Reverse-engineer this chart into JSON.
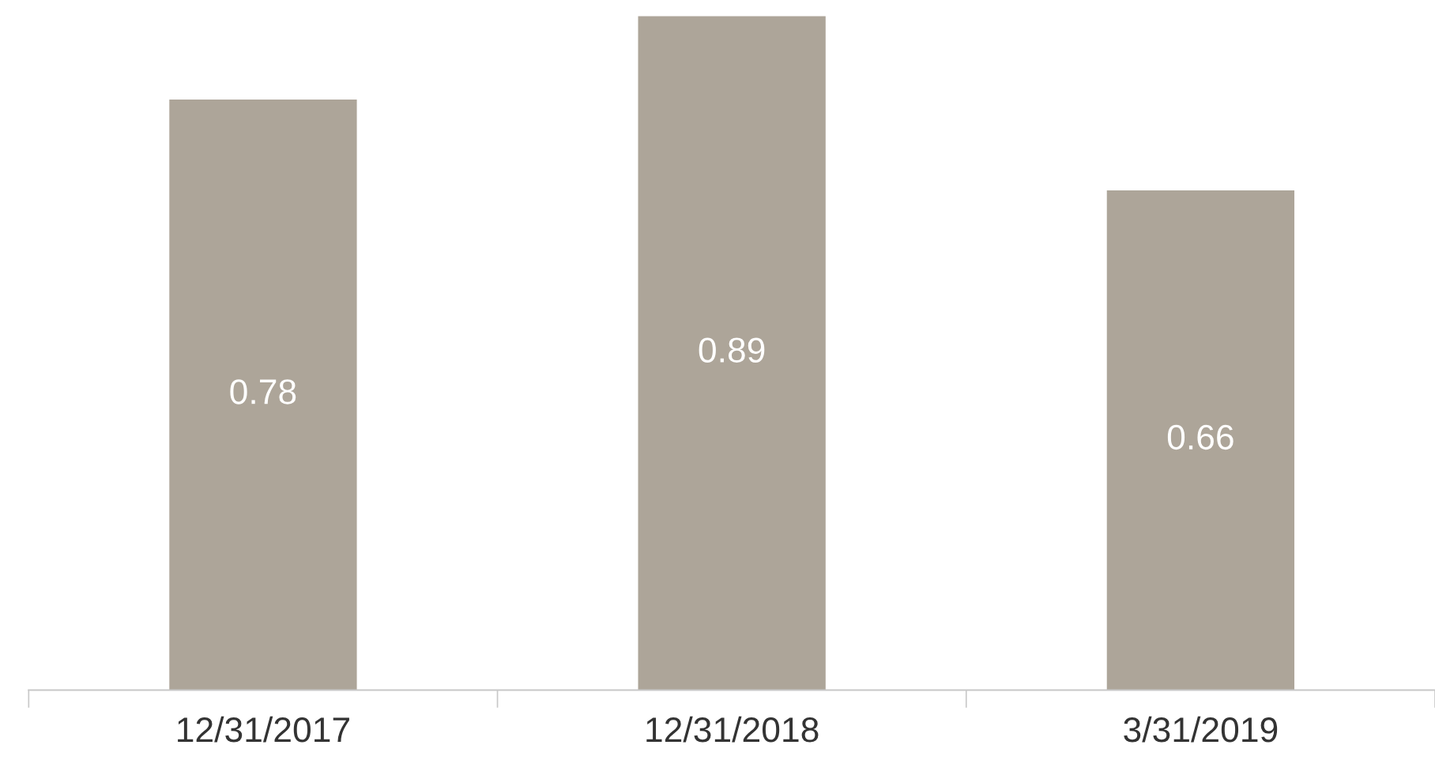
{
  "chart_data": {
    "type": "bar",
    "categories": [
      "12/31/2017",
      "12/31/2018",
      "3/31/2019"
    ],
    "values": [
      0.78,
      0.89,
      0.66
    ],
    "color": "#ada599",
    "data_labels": true,
    "tick_labels": "x",
    "grid": false,
    "legend": false
  }
}
